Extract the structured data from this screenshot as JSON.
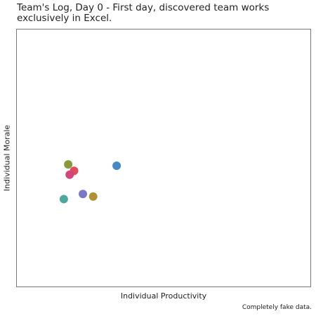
{
  "chart_data": {
    "type": "scatter",
    "title": "Team's Log, Day 0 - First day, discovered team works exclusively in Excel.",
    "xlabel": "Individual Productivity",
    "ylabel": "Individual Morale",
    "caption": "Completely fake data.",
    "xlim": [
      0,
      10
    ],
    "ylim": [
      0,
      10
    ],
    "grid": false,
    "legend": "none",
    "points": [
      {
        "x": 1.75,
        "y": 4.75,
        "color": "#8a9a3a"
      },
      {
        "x": 1.95,
        "y": 4.5,
        "color": "#e04a5a"
      },
      {
        "x": 1.8,
        "y": 4.35,
        "color": "#d4447c"
      },
      {
        "x": 3.4,
        "y": 4.7,
        "color": "#4488cc"
      },
      {
        "x": 2.25,
        "y": 3.6,
        "color": "#7777cc"
      },
      {
        "x": 2.6,
        "y": 3.5,
        "color": "#b09030"
      },
      {
        "x": 1.6,
        "y": 3.4,
        "color": "#4aaaa0"
      }
    ]
  }
}
